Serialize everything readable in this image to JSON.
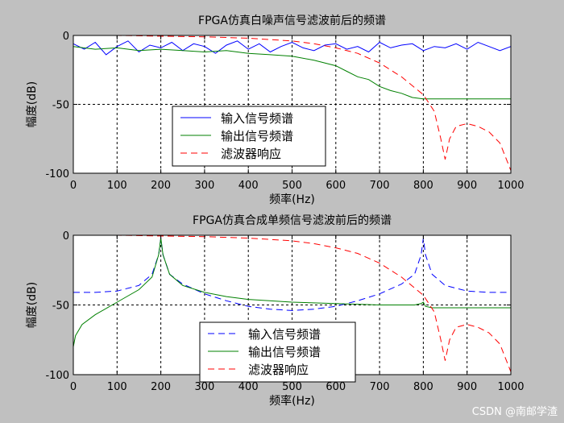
{
  "watermark": "CSDN @南邮学渣",
  "chart_data": [
    {
      "type": "line",
      "title": "FPGA仿真白噪声信号滤波前后的频谱",
      "xlabel": "频率(Hz)",
      "ylabel": "幅度(dB)",
      "xlim": [
        0,
        1000
      ],
      "ylim": [
        -100,
        0
      ],
      "xticks": [
        0,
        100,
        200,
        300,
        400,
        500,
        600,
        700,
        800,
        900,
        1000
      ],
      "yticks": [
        0,
        -50,
        -100
      ],
      "grid": true,
      "legend_position": "bottom-center",
      "series": [
        {
          "name": "输入信号频谱",
          "color": "#0000ff",
          "style": "solid",
          "description": "white noise, fluctuates roughly between -25 dB and 0 dB across the whole band",
          "x": [
            0,
            25,
            50,
            75,
            100,
            125,
            150,
            175,
            200,
            225,
            250,
            275,
            300,
            325,
            350,
            375,
            400,
            425,
            450,
            475,
            500,
            525,
            550,
            575,
            600,
            625,
            650,
            675,
            700,
            725,
            750,
            775,
            800,
            825,
            850,
            875,
            900,
            925,
            950,
            975,
            1000
          ],
          "y": [
            -6,
            -10,
            -5,
            -14,
            -8,
            -4,
            -12,
            -7,
            -9,
            -5,
            -11,
            -6,
            -8,
            -13,
            -7,
            -4,
            -10,
            -6,
            -12,
            -8,
            -5,
            -9,
            -11,
            -7,
            -6,
            -10,
            -8,
            -12,
            -5,
            -9,
            -7,
            -6,
            -11,
            -8,
            -9,
            -6,
            -10,
            -5,
            -8,
            -11,
            -8
          ]
        },
        {
          "name": "输出信号频谱",
          "color": "#008000",
          "style": "solid",
          "description": "filtered noise: follows input in passband, rolls off to about -46 dB after 780 Hz",
          "x": [
            0,
            50,
            100,
            150,
            200,
            250,
            300,
            350,
            400,
            450,
            500,
            550,
            600,
            625,
            650,
            675,
            700,
            725,
            750,
            775,
            800,
            850,
            900,
            950,
            1000
          ],
          "y": [
            -8,
            -10,
            -9,
            -11,
            -10,
            -11,
            -12,
            -11,
            -13,
            -14,
            -15,
            -18,
            -22,
            -26,
            -30,
            -32,
            -37,
            -40,
            -42,
            -45,
            -46,
            -46,
            -46,
            -46,
            -46
          ]
        },
        {
          "name": "滤波器响应",
          "color": "#ff0000",
          "style": "dashed",
          "x": [
            0,
            100,
            200,
            300,
            400,
            500,
            550,
            600,
            650,
            700,
            750,
            800,
            825,
            840,
            850,
            860,
            875,
            900,
            925,
            950,
            975,
            990,
            1000
          ],
          "y": [
            0,
            0,
            -0.5,
            -1,
            -2,
            -4,
            -6,
            -9,
            -13,
            -20,
            -30,
            -43,
            -55,
            -75,
            -90,
            -75,
            -66,
            -64,
            -66,
            -70,
            -78,
            -90,
            -98
          ]
        }
      ]
    },
    {
      "type": "line",
      "title": "FPGA仿真合成单频信号滤波前后的频谱",
      "xlabel": "频率(Hz)",
      "ylabel": "幅度(dB)",
      "xlim": [
        0,
        1000
      ],
      "ylim": [
        -100,
        0
      ],
      "xticks": [
        0,
        100,
        200,
        300,
        400,
        500,
        600,
        700,
        800,
        900,
        1000
      ],
      "yticks": [
        0,
        -50,
        -100
      ],
      "grid": true,
      "legend_position": "bottom-center",
      "series": [
        {
          "name": "输入信号频谱",
          "color": "#0000ff",
          "style": "dashed",
          "x": [
            0,
            50,
            100,
            150,
            180,
            195,
            200,
            205,
            220,
            250,
            300,
            350,
            400,
            450,
            500,
            550,
            600,
            650,
            700,
            750,
            780,
            795,
            800,
            805,
            820,
            850,
            900,
            950,
            1000
          ],
          "y": [
            -41,
            -41,
            -40,
            -36,
            -28,
            -14,
            -2,
            -14,
            -28,
            -35,
            -42,
            -47,
            -51,
            -53,
            -54,
            -53,
            -51,
            -47,
            -42,
            -35,
            -28,
            -14,
            -2,
            -14,
            -28,
            -36,
            -40,
            -41,
            -41
          ]
        },
        {
          "name": "输出信号频谱",
          "color": "#008000",
          "style": "solid",
          "x": [
            0,
            5,
            20,
            50,
            100,
            150,
            180,
            195,
            200,
            205,
            220,
            250,
            300,
            350,
            400,
            500,
            600,
            700,
            780,
            795,
            800,
            805,
            820,
            850,
            900,
            1000
          ],
          "y": [
            -80,
            -72,
            -64,
            -57,
            -48,
            -39,
            -30,
            -14,
            -2,
            -14,
            -28,
            -36,
            -41,
            -44,
            -46,
            -48,
            -49,
            -50,
            -50,
            -49,
            -48,
            -51,
            -52,
            -52,
            -52,
            -52
          ]
        },
        {
          "name": "滤波器响应",
          "color": "#ff0000",
          "style": "dashed",
          "x": [
            0,
            100,
            200,
            300,
            400,
            500,
            550,
            600,
            650,
            700,
            750,
            800,
            825,
            840,
            850,
            860,
            875,
            900,
            925,
            950,
            975,
            990,
            1000
          ],
          "y": [
            0,
            0,
            -0.5,
            -1,
            -2,
            -4,
            -6,
            -9,
            -13,
            -20,
            -30,
            -43,
            -55,
            -75,
            -90,
            -75,
            -66,
            -64,
            -66,
            -70,
            -78,
            -90,
            -98
          ]
        }
      ]
    }
  ]
}
